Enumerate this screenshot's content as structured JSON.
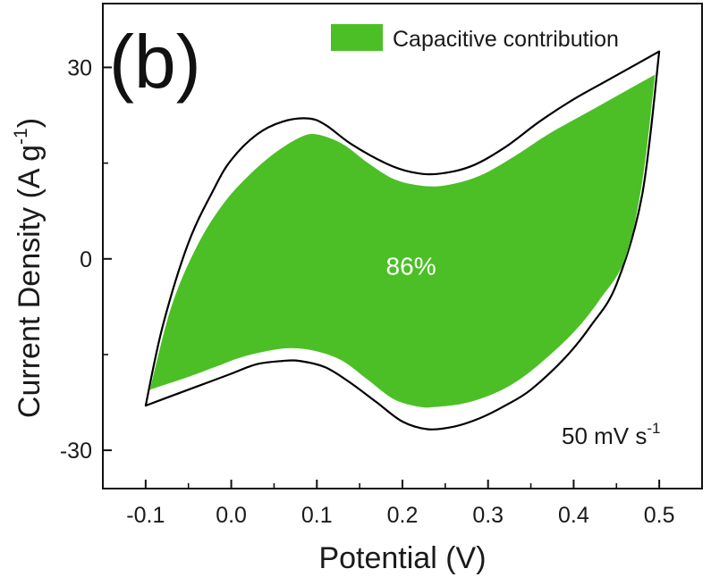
{
  "chart_data": {
    "type": "area",
    "panel_label": "(b)",
    "xlabel": "Potential (V)",
    "ylabel": "Current Density (A g",
    "ylabel_superscript": "-1",
    "ylabel_suffix": ")",
    "xlim": [
      -0.15,
      0.55
    ],
    "ylim": [
      -36,
      40
    ],
    "xticks": [
      -0.1,
      0.0,
      0.1,
      0.2,
      0.3,
      0.4,
      0.5
    ],
    "xtick_labels": [
      "-0.1",
      "0.0",
      "0.1",
      "0.2",
      "0.3",
      "0.4",
      "0.5"
    ],
    "yticks": [
      -30,
      0,
      30
    ],
    "ytick_labels": [
      "-30",
      "0",
      "30"
    ],
    "legend": {
      "label": "Capacitive contribution",
      "color": "#4cbf26",
      "position": "top-right"
    },
    "annotation_percent": "86%",
    "annotation_percent_pos": [
      0.21,
      -2.5
    ],
    "scan_rate": "50 mV s",
    "scan_rate_superscript": "-1",
    "series": [
      {
        "role": "cv-outline",
        "color": "#000000",
        "fill": "none",
        "upper": {
          "x": [
            -0.1,
            -0.08,
            -0.05,
            -0.02,
            0.0,
            0.03,
            0.06,
            0.09,
            0.11,
            0.14,
            0.18,
            0.21,
            0.24,
            0.28,
            0.32,
            0.36,
            0.4,
            0.44,
            0.48,
            0.5
          ],
          "y": [
            -23,
            -10.5,
            2.5,
            11,
            15.5,
            19.5,
            21.5,
            22,
            21,
            18,
            15,
            13.6,
            13.3,
            14.5,
            17.5,
            21.5,
            25,
            28,
            31,
            32.5
          ]
        },
        "lower": {
          "x": [
            0.5,
            0.48,
            0.45,
            0.42,
            0.39,
            0.35,
            0.32,
            0.29,
            0.26,
            0.23,
            0.2,
            0.17,
            0.14,
            0.11,
            0.08,
            0.06,
            0.03,
            0.0,
            -0.03,
            -0.06,
            -0.1
          ],
          "y": [
            32.5,
            10,
            -4,
            -10.5,
            -15.5,
            -20.5,
            -23,
            -25,
            -26.3,
            -26.7,
            -25.5,
            -22.5,
            -19.5,
            -17,
            -16,
            -16,
            -16.5,
            -18,
            -19.5,
            -21,
            -23
          ]
        }
      },
      {
        "role": "capacitive",
        "name": "Capacitive contribution",
        "color": "#4cbf26",
        "fill": "#4cbf26",
        "upper": {
          "x": [
            -0.095,
            -0.07,
            -0.04,
            -0.01,
            0.02,
            0.05,
            0.08,
            0.1,
            0.13,
            0.16,
            0.19,
            0.22,
            0.25,
            0.29,
            0.33,
            0.37,
            0.41,
            0.45,
            0.49,
            0.495
          ],
          "y": [
            -20.5,
            -7.5,
            2,
            8.5,
            13,
            16.5,
            19,
            19.5,
            18,
            15,
            12.5,
            11.5,
            11.5,
            13,
            16,
            19.5,
            22.5,
            25.5,
            28.5,
            28.8
          ]
        },
        "lower": {
          "x": [
            0.495,
            0.48,
            0.46,
            0.43,
            0.4,
            0.36,
            0.33,
            0.3,
            0.27,
            0.24,
            0.22,
            0.19,
            0.16,
            0.13,
            0.1,
            0.07,
            0.04,
            0.01,
            -0.02,
            -0.05,
            -0.095
          ],
          "y": [
            28.8,
            12,
            0,
            -6.5,
            -11.5,
            -16.5,
            -19.5,
            -21.5,
            -22.7,
            -23.2,
            -23.2,
            -22,
            -19,
            -16,
            -14.5,
            -14,
            -14.5,
            -15.5,
            -17,
            -18.5,
            -20.5
          ]
        }
      }
    ]
  }
}
